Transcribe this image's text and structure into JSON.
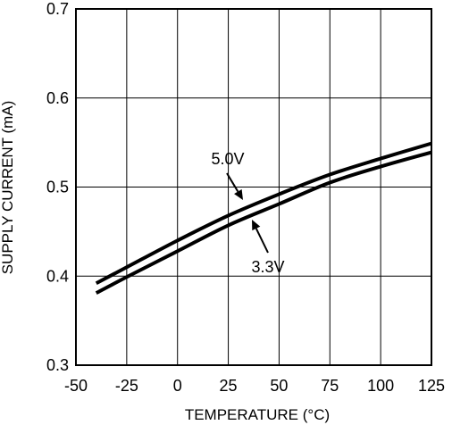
{
  "chart_data": {
    "type": "line",
    "title": "",
    "xlabel": "TEMPERATURE (°C)",
    "ylabel": "SUPPLY CURRENT (mA)",
    "xlim": [
      -50,
      125
    ],
    "ylim": [
      0.3,
      0.7
    ],
    "x_ticks": [
      -50,
      -25,
      0,
      25,
      50,
      75,
      100,
      125
    ],
    "x_tick_labels": [
      "-50",
      "-25",
      "0",
      "25",
      "50",
      "75",
      "100",
      "125"
    ],
    "y_ticks": [
      0.3,
      0.4,
      0.5,
      0.6,
      0.7
    ],
    "y_tick_labels": [
      "0.3",
      "0.4",
      "0.5",
      "0.6",
      "0.7"
    ],
    "grid": true,
    "series": [
      {
        "name": "5.0V",
        "color": "#000000",
        "x": [
          -40,
          -25,
          0,
          25,
          50,
          75,
          100,
          125
        ],
        "y": [
          0.392,
          0.41,
          0.44,
          0.468,
          0.492,
          0.514,
          0.532,
          0.549
        ]
      },
      {
        "name": "3.3V",
        "color": "#000000",
        "x": [
          -40,
          -25,
          0,
          25,
          50,
          75,
          100,
          125
        ],
        "y": [
          0.381,
          0.399,
          0.428,
          0.457,
          0.481,
          0.505,
          0.523,
          0.539
        ]
      }
    ],
    "annotations": [
      {
        "text": "5.0V",
        "series": 0
      },
      {
        "text": "3.3V",
        "series": 1
      }
    ]
  }
}
